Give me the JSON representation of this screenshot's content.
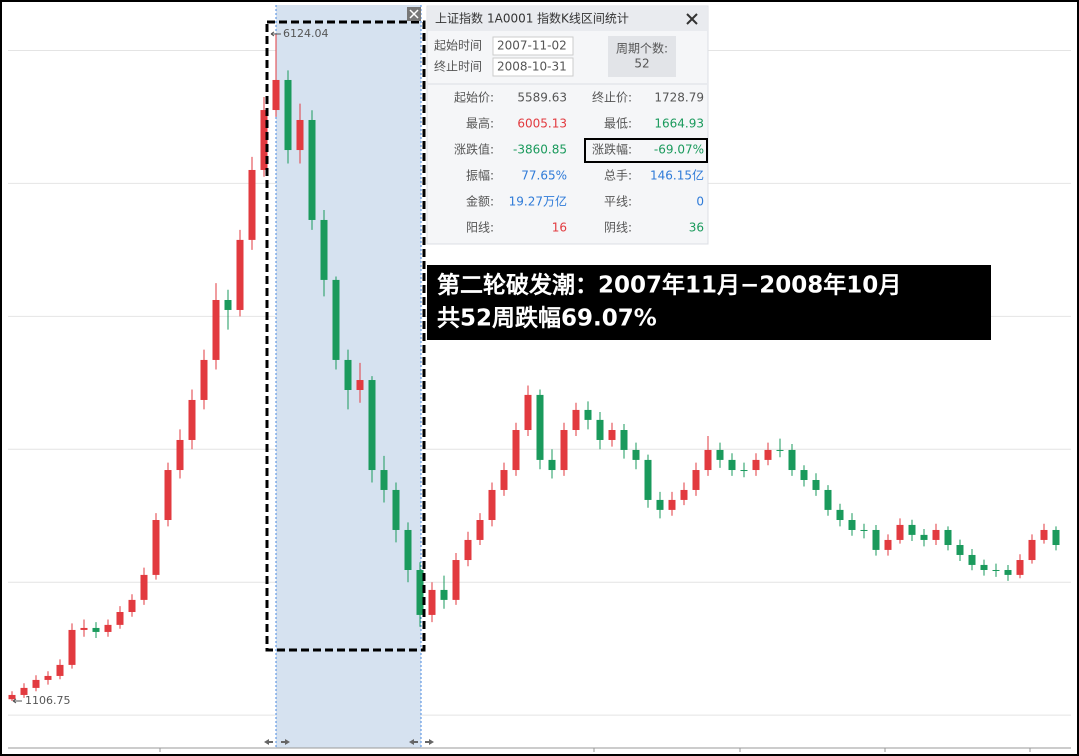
{
  "chart_data": {
    "type": "candlestick",
    "ylim": [
      753,
      6342
    ],
    "yticks": [
      1000,
      2000,
      3000,
      4000,
      5000,
      6000
    ],
    "grid": true,
    "up_color": "#e23a3f",
    "down_color": "#1a9a5c",
    "open": [
      1120,
      1152,
      1205,
      1265,
      1295,
      1378,
      1641,
      1656,
      1626,
      1679,
      1776,
      1867,
      2055,
      2468,
      2844,
      3070,
      3371,
      3672,
      4123,
      4048,
      4575,
      5101,
      5552,
      5778,
      5251,
      5477,
      4725,
      4274,
      3672,
      3446,
      3521,
      2844,
      2694,
      2393,
      2092,
      1754,
      1942,
      1867,
      2167,
      2318,
      2468,
      2694,
      2844,
      3145,
      3409,
      2920,
      2844,
      3145,
      3296,
      3221,
      3070,
      3145,
      2995,
      2920,
      2619,
      2544,
      2619,
      2694,
      2844,
      2995,
      2920,
      2844,
      2844,
      2920,
      2995,
      2995,
      2844,
      2769,
      2694,
      2544,
      2468,
      2393,
      2393,
      2243,
      2318,
      2431,
      2356,
      2318,
      2393,
      2280,
      2205,
      2130,
      2092,
      2092,
      2055,
      2167,
      2318,
      2393
    ],
    "high": [
      1180,
      1240,
      1300,
      1330,
      1420,
      1690,
      1720,
      1700,
      1720,
      1820,
      1910,
      2110,
      2520,
      2900,
      3150,
      3450,
      3750,
      4250,
      4200,
      4650,
      5200,
      5650,
      6124.04,
      5850,
      5600,
      5550,
      4800,
      4300,
      3750,
      3650,
      3550,
      2950,
      2750,
      2450,
      2150,
      2000,
      2050,
      2220,
      2380,
      2520,
      2750,
      2900,
      3200,
      3480,
      3450,
      3000,
      3200,
      3350,
      3360,
      3280,
      3200,
      3190,
      3050,
      2960,
      2680,
      2680,
      2750,
      2900,
      3100,
      3050,
      2970,
      2900,
      2970,
      3050,
      3080,
      3040,
      2880,
      2820,
      2730,
      2590,
      2520,
      2440,
      2430,
      2360,
      2480,
      2470,
      2400,
      2440,
      2420,
      2320,
      2250,
      2170,
      2140,
      2130,
      2210,
      2360,
      2440,
      2420
    ],
    "low": [
      1106.75,
      1130,
      1180,
      1230,
      1270,
      1350,
      1590,
      1580,
      1590,
      1650,
      1740,
      1830,
      2020,
      2420,
      2780,
      3000,
      3300,
      3600,
      3900,
      4000,
      4500,
      5050,
      5500,
      5150,
      5150,
      4650,
      4150,
      3600,
      3300,
      3350,
      2750,
      2600,
      2300,
      2000,
      1664.93,
      1700,
      1800,
      1830,
      2120,
      2280,
      2420,
      2650,
      2800,
      3100,
      2850,
      2780,
      2800,
      3100,
      3150,
      3000,
      3020,
      2930,
      2850,
      2560,
      2480,
      2500,
      2580,
      2650,
      2800,
      2860,
      2800,
      2790,
      2800,
      2880,
      2940,
      2800,
      2720,
      2650,
      2500,
      2420,
      2350,
      2330,
      2200,
      2200,
      2290,
      2310,
      2270,
      2280,
      2240,
      2160,
      2090,
      2050,
      2040,
      2010,
      2030,
      2140,
      2290,
      2240
    ],
    "close": [
      1152,
      1205,
      1265,
      1295,
      1378,
      1641,
      1656,
      1626,
      1679,
      1776,
      1867,
      2055,
      2468,
      2844,
      3070,
      3371,
      3672,
      4123,
      4048,
      4575,
      5101,
      5552,
      5778,
      5251,
      5477,
      4725,
      4274,
      3672,
      3446,
      3521,
      2844,
      2694,
      2393,
      2092,
      1754,
      1942,
      1867,
      2167,
      2318,
      2468,
      2694,
      2844,
      3145,
      3409,
      2920,
      2844,
      3145,
      3296,
      3221,
      3070,
      3145,
      2995,
      2920,
      2619,
      2544,
      2619,
      2694,
      2844,
      2995,
      2920,
      2844,
      2844,
      2920,
      2995,
      2995,
      2844,
      2769,
      2694,
      2544,
      2468,
      2393,
      2393,
      2243,
      2318,
      2431,
      2356,
      2318,
      2393,
      2280,
      2205,
      2130,
      2092,
      2092,
      2055,
      2167,
      2318,
      2393,
      2280
    ],
    "annotation": [
      "第二轮破发潮：2007年11月−2008年10月",
      "共52周跌幅69.07%"
    ]
  },
  "panel": {
    "name": "上证指数",
    "code": "1A0001",
    "title": "指数K线区间统计",
    "start_label": "起始时间",
    "start": "2007-11-02",
    "end_label": "终止时间",
    "end": "2008-10-31",
    "count_label": "周期个数:",
    "count": "52",
    "rows": [
      [
        "起始价:",
        "5589.63",
        "终止价:",
        "1728.79"
      ],
      [
        "最高:",
        "6005.13",
        "最低:",
        "1664.93"
      ],
      [
        "涨跌值:",
        "-3860.85",
        "涨跌幅:",
        "-69.07%"
      ],
      [
        "振幅:",
        "77.65%",
        "总手:",
        "146.15亿"
      ],
      [
        "金额:",
        "19.27万亿",
        "平线:",
        "0"
      ],
      [
        "阳线:",
        "16",
        "阴线:",
        "36"
      ]
    ]
  }
}
